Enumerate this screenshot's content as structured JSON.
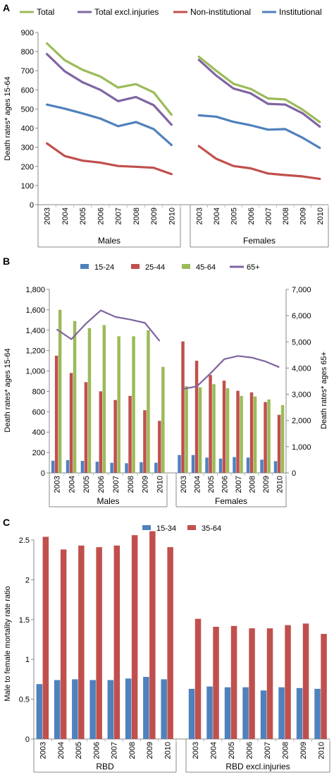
{
  "chart_data": [
    {
      "panel": "A",
      "type": "line",
      "ylabel": "Death rates* ages 15-64",
      "ylim": [
        0,
        900
      ],
      "yticks": [
        0,
        100,
        200,
        300,
        400,
        500,
        600,
        700,
        800,
        900
      ],
      "groups": [
        "Males",
        "Females"
      ],
      "categories": [
        "2003",
        "2004",
        "2005",
        "2006",
        "2007",
        "2008",
        "2009",
        "2010"
      ],
      "legend_position": "top",
      "series": [
        {
          "name": "Total",
          "color": "#9BBB59",
          "values": {
            "Males": [
              843,
              755,
              705,
              670,
              612,
              630,
              587,
              470
            ],
            "Females": [
              773,
              700,
              632,
              605,
              555,
              550,
              497,
              432
            ]
          }
        },
        {
          "name": "Total excl.injuries",
          "color": "#8064A2",
          "values": {
            "Males": [
              787,
              697,
              640,
              600,
              541,
              563,
              520,
              418
            ],
            "Females": [
              757,
              675,
              607,
              582,
              527,
              523,
              478,
              408
            ]
          }
        },
        {
          "name": "Non-institutional",
          "color": "#C0504D",
          "values": {
            "Males": [
              320,
              254,
              230,
              220,
              202,
              198,
              193,
              160
            ],
            "Females": [
              306,
              240,
              202,
              190,
              163,
              155,
              148,
              135
            ]
          }
        },
        {
          "name": "Institutional",
          "color": "#4F81BD",
          "values": {
            "Males": [
              523,
              502,
              477,
              450,
              410,
              432,
              395,
              312
            ],
            "Females": [
              467,
              460,
              433,
              415,
              392,
              395,
              350,
              297
            ]
          }
        }
      ]
    },
    {
      "panel": "B",
      "type": "bar",
      "ylabel": "Death rates* ages 15-64",
      "ylabel_right": "Death rates* ages 65+",
      "ylim": [
        0,
        1800
      ],
      "ylim_right": [
        0,
        7000
      ],
      "yticks": [
        "0",
        "200",
        "400",
        "600",
        "800",
        "1,000",
        "1,200",
        "1,400",
        "1,600",
        "1,800"
      ],
      "yticks_right": [
        "0",
        "1,000",
        "2,000",
        "3,000",
        "4,000",
        "5,000",
        "6,000",
        "7,000"
      ],
      "groups": [
        "Males",
        "Females"
      ],
      "categories": [
        "2003",
        "2004",
        "2005",
        "2006",
        "2007",
        "2008",
        "2009",
        "2010"
      ],
      "legend_position": "top",
      "bar_series": [
        {
          "name": "15-24",
          "color": "#4F81BD",
          "values": {
            "Males": [
              120,
              125,
              118,
              110,
              100,
              95,
              105,
              100
            ],
            "Females": [
              175,
              175,
              150,
              140,
              155,
              150,
              130,
              115
            ]
          }
        },
        {
          "name": "25-44",
          "color": "#C0504D",
          "values": {
            "Males": [
              1150,
              980,
              890,
              800,
              715,
              755,
              615,
              510
            ],
            "Females": [
              1290,
              1100,
              960,
              905,
              805,
              790,
              695,
              570
            ]
          }
        },
        {
          "name": "45-64",
          "color": "#9BBB59",
          "values": {
            "Males": [
              1600,
              1490,
              1420,
              1450,
              1340,
              1340,
              1400,
              1040
            ],
            "Females": [
              850,
              840,
              870,
              830,
              755,
              750,
              720,
              665
            ]
          }
        }
      ],
      "line_series": [
        {
          "name": "65+",
          "color": "#8064A2",
          "axis": "right",
          "values": {
            "Males": [
              5480,
              5100,
              5700,
              6200,
              5950,
              5850,
              5720,
              5030
            ],
            "Females": [
              3200,
              3300,
              3800,
              4340,
              4460,
              4400,
              4250,
              4030
            ]
          }
        }
      ]
    },
    {
      "panel": "C",
      "type": "bar",
      "ylabel": "Male to female mortality rate ratio",
      "ylim": [
        0,
        2.5
      ],
      "yticks": [
        "0",
        "0.5",
        "1",
        "1.5",
        "2",
        "2.5"
      ],
      "groups": [
        "RBD",
        "RBD excl.injuries"
      ],
      "categories": [
        "2003",
        "2004",
        "2005",
        "2006",
        "2007",
        "2008",
        "2009",
        "2010"
      ],
      "legend_position": "top",
      "series": [
        {
          "name": "15-34",
          "color": "#4F81BD",
          "values": {
            "RBD": [
              0.69,
              0.74,
              0.75,
              0.74,
              0.74,
              0.76,
              0.78,
              0.75
            ],
            "RBD excl.injuries": [
              0.63,
              0.66,
              0.65,
              0.65,
              0.61,
              0.65,
              0.64,
              0.63
            ]
          }
        },
        {
          "name": "35-64",
          "color": "#C0504D",
          "values": {
            "RBD": [
              2.54,
              2.38,
              2.43,
              2.41,
              2.43,
              2.56,
              2.61,
              2.41
            ],
            "RBD excl.injuries": [
              1.51,
              1.41,
              1.42,
              1.39,
              1.39,
              1.43,
              1.45,
              1.32
            ]
          }
        }
      ]
    }
  ]
}
